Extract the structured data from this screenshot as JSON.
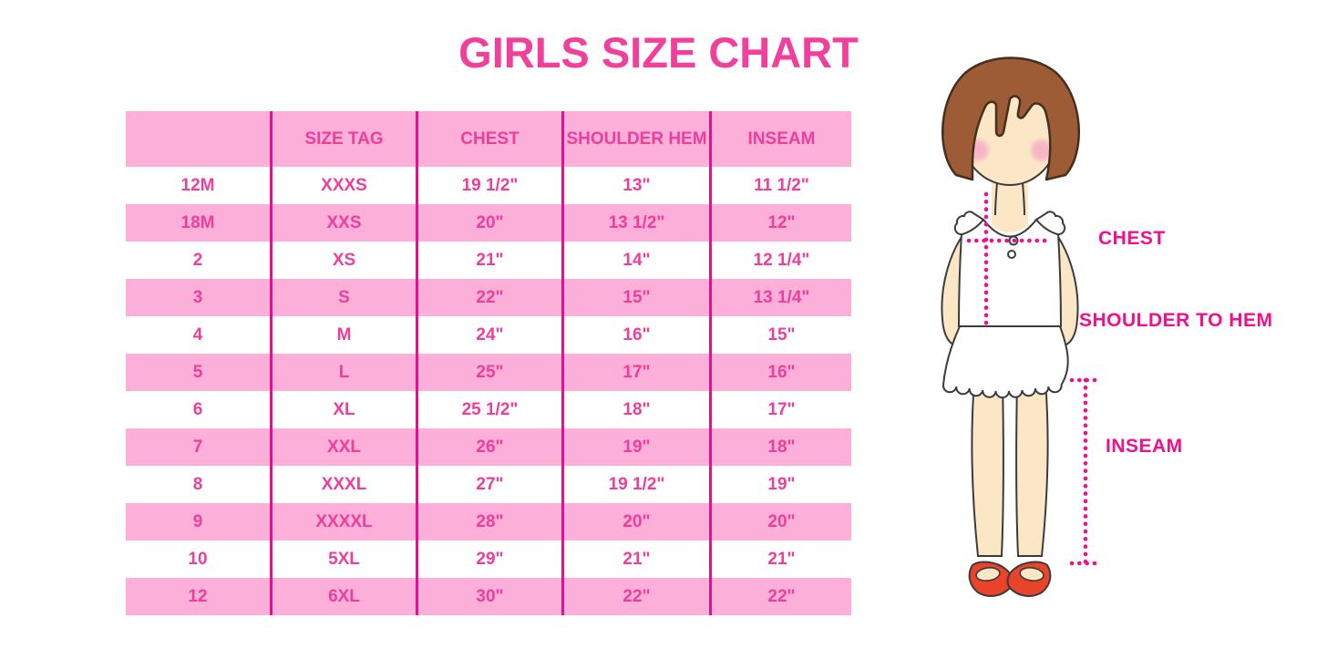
{
  "title": "GIRLS SIZE CHART",
  "chart_data": {
    "type": "table",
    "title": "GIRLS SIZE CHART",
    "columns": [
      "",
      "SIZE TAG",
      "CHEST",
      "SHOULDER HEM",
      "INSEAM"
    ],
    "rows": [
      [
        "12M",
        "XXXS",
        "19 1/2\"",
        "13\"",
        "11 1/2\""
      ],
      [
        "18M",
        "XXS",
        "20\"",
        "13 1/2\"",
        "12\""
      ],
      [
        "2",
        "XS",
        "21\"",
        "14\"",
        "12 1/4\""
      ],
      [
        "3",
        "S",
        "22\"",
        "15\"",
        "13 1/4\""
      ],
      [
        "4",
        "M",
        "24\"",
        "16\"",
        "15\""
      ],
      [
        "5",
        "L",
        "25\"",
        "17\"",
        "16\""
      ],
      [
        "6",
        "XL",
        "25 1/2\"",
        "18\"",
        "17\""
      ],
      [
        "7",
        "XXL",
        "26\"",
        "19\"",
        "18\""
      ],
      [
        "8",
        "XXXL",
        "27\"",
        "19 1/2\"",
        "19\""
      ],
      [
        "9",
        "XXXXL",
        "28\"",
        "20\"",
        "20\""
      ],
      [
        "10",
        "5XL",
        "29\"",
        "21\"",
        "21\""
      ],
      [
        "12",
        "6XL",
        "30\"",
        "22\"",
        "22\""
      ]
    ],
    "row_band_pattern": "white/pink alternating, header pink",
    "legend_position": "none",
    "grid": "vertical magenta column separators only"
  },
  "figure_labels": {
    "chest": "CHEST",
    "shoulder_to_hem": "SHOULDER TO HEM",
    "inseam": "INSEAM"
  },
  "colors": {
    "band": "#FBAFD9",
    "grid": "#E3118D",
    "celltext": "#EE3E9C",
    "title": "#F23F9B",
    "measure": "#F0108E",
    "hair": "#9D5C35",
    "skin": "#FBE7C6",
    "shoe": "#E9432A"
  }
}
